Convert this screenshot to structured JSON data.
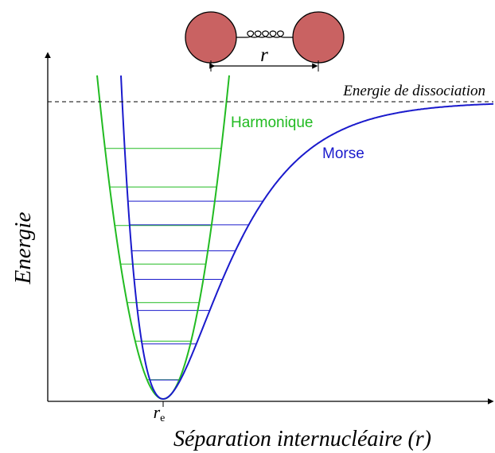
{
  "molecule": {
    "bond_label": "r"
  },
  "labels": {
    "dissociation": "Energie de dissociation",
    "harmonic": "Harmonique",
    "morse": "Morse"
  },
  "axes": {
    "y_title": "Energie",
    "x_title": "Séparation internucléaire (r)",
    "x_marker": {
      "symbol": "r",
      "subscript": "e"
    }
  }
}
